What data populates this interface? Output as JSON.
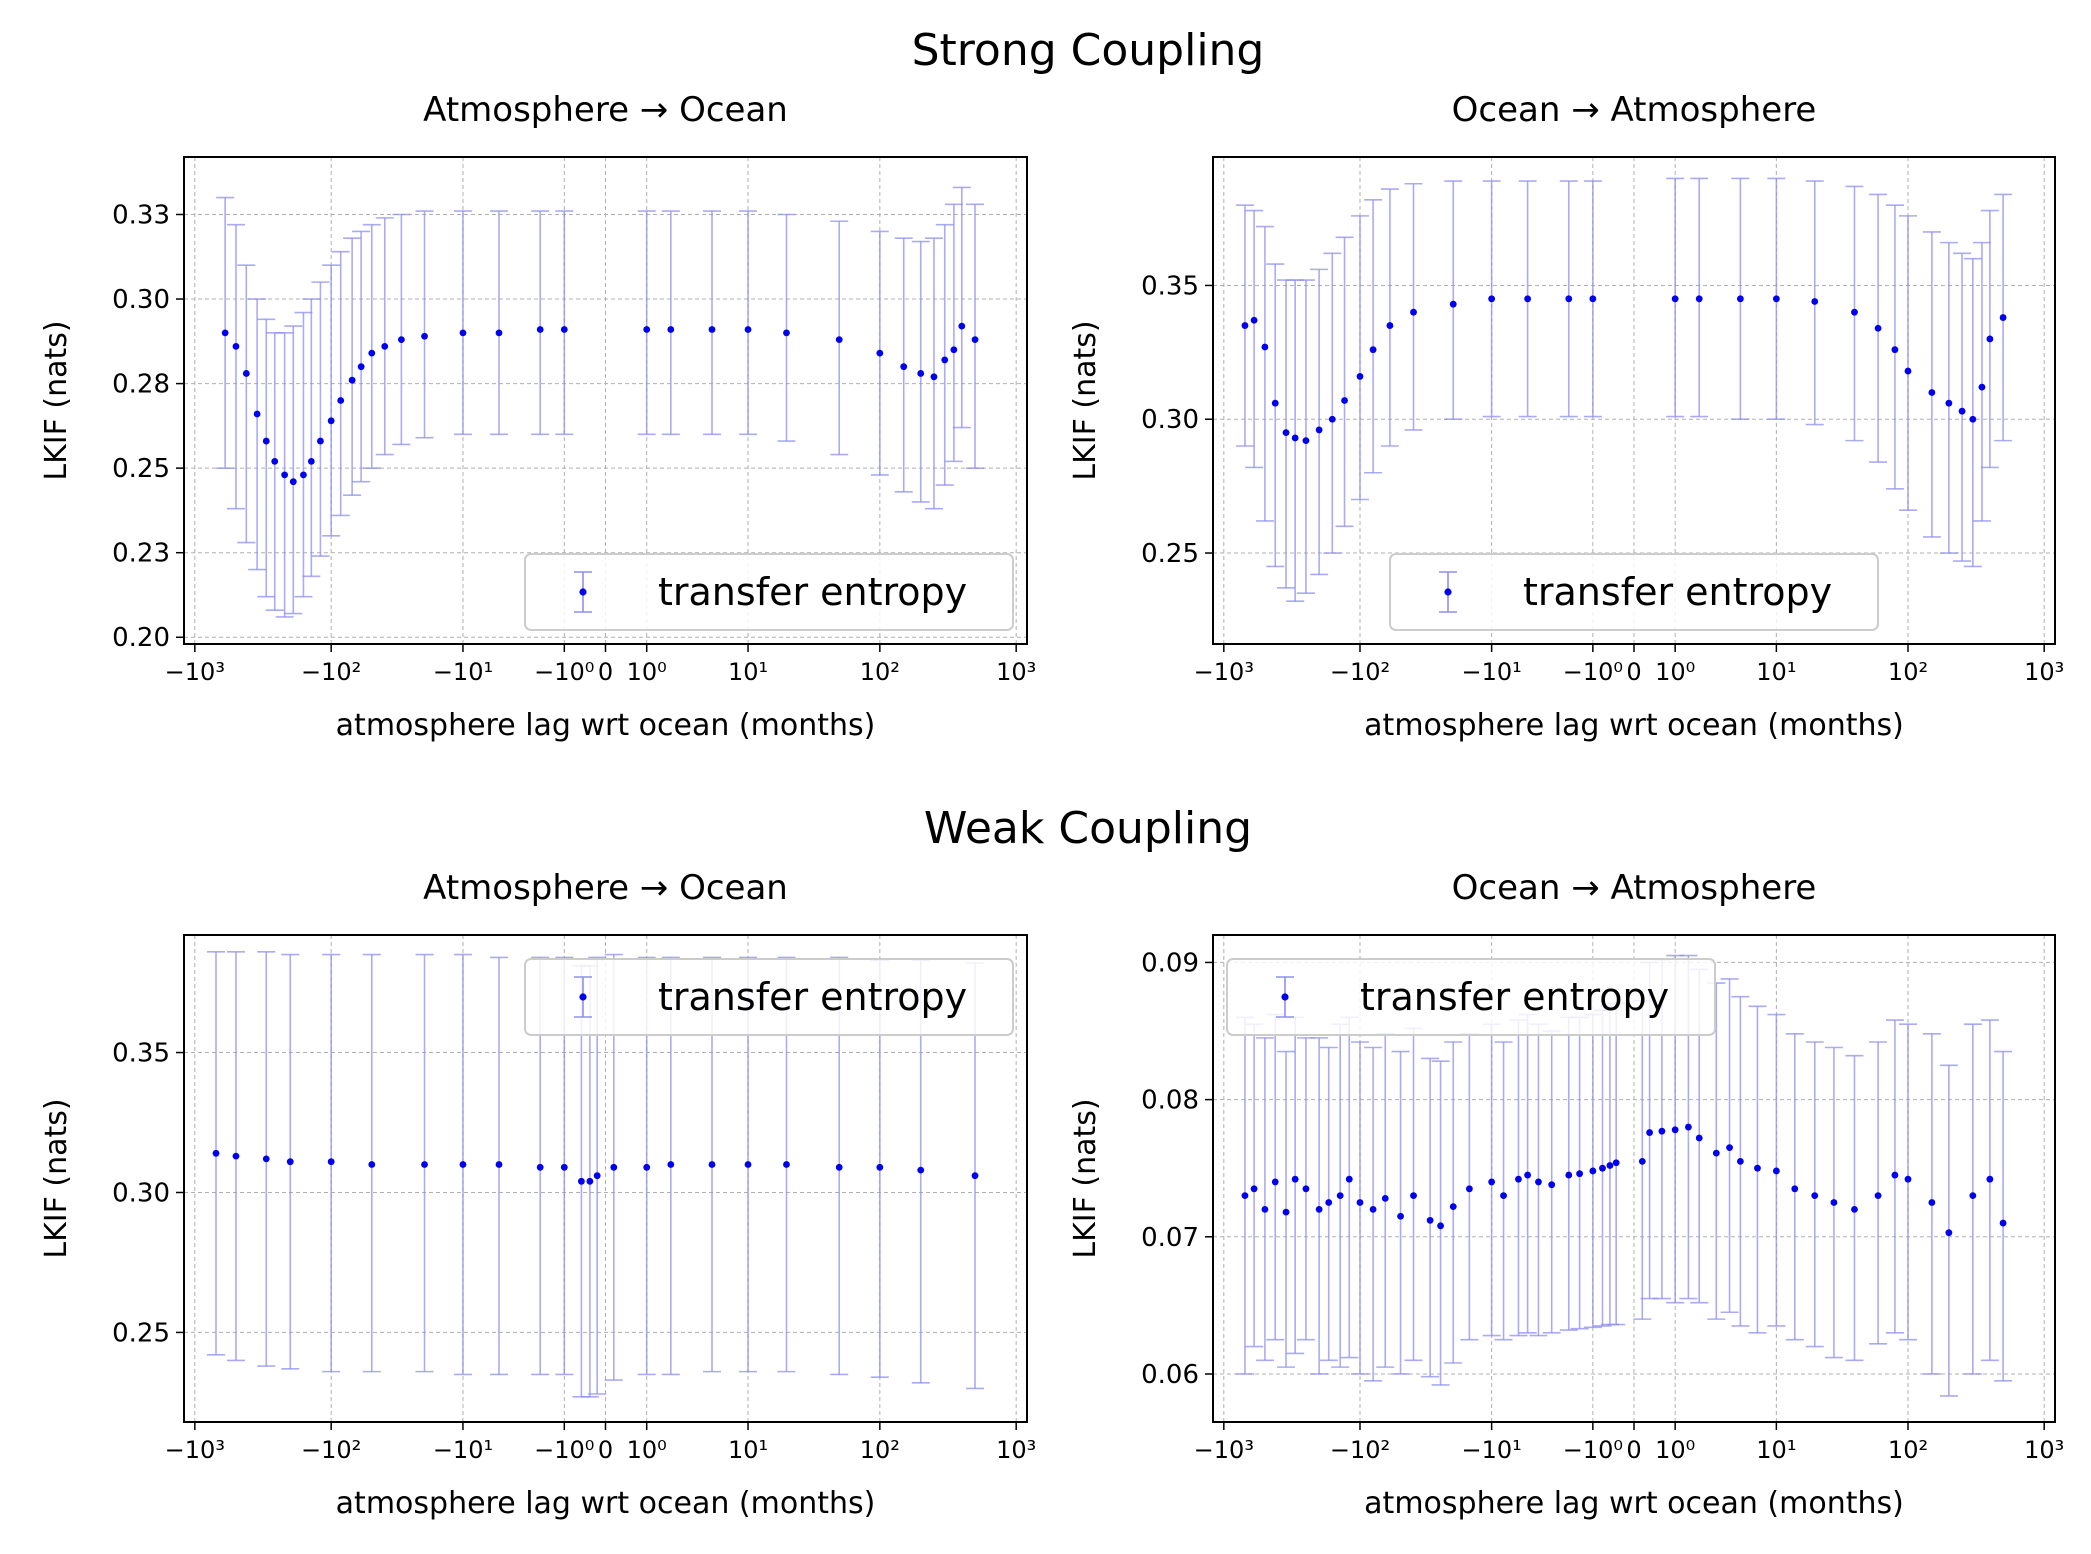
{
  "colors": {
    "marker": "#0000ee",
    "errorbar": "#8f8ff0",
    "grid": "#b0b0b0",
    "axes": "#000000",
    "legend_border": "#cccccc"
  },
  "titles": {
    "strong": "Strong Coupling",
    "weak": "Weak Coupling"
  },
  "chart_data": [
    {
      "type": "scatter",
      "title": "Atmosphere → Ocean",
      "xlabel": "atmosphere lag wrt ocean (months)",
      "ylabel": "LKIF (nats)",
      "xscale": "symlog",
      "xlim": [
        -1200,
        1200
      ],
      "ylim": [
        0.198,
        0.342
      ],
      "xticks": [
        "−10³",
        "−10²",
        "−10¹",
        "−10⁰",
        "0",
        "10⁰",
        "10¹",
        "10²",
        "10³"
      ],
      "yticks": [
        0.2,
        0.225,
        0.25,
        0.275,
        0.3,
        0.325
      ],
      "ytick_labels": [
        "0.20",
        "0.23",
        "0.25",
        "0.28",
        "0.30",
        "0.33"
      ],
      "legend": {
        "label": "transfer entropy",
        "location": "lower right"
      },
      "grid": true,
      "series": [
        {
          "name": "transfer entropy",
          "x": [
            -600,
            -500,
            -420,
            -350,
            -300,
            -260,
            -220,
            -190,
            -160,
            -140,
            -120,
            -100,
            -85,
            -70,
            -60,
            -50,
            -40,
            -30,
            -20,
            -10,
            -5,
            -2,
            -1,
            1,
            2,
            5,
            10,
            20,
            50,
            100,
            150,
            200,
            250,
            300,
            350,
            400,
            500
          ],
          "y": [
            0.29,
            0.286,
            0.278,
            0.266,
            0.258,
            0.252,
            0.248,
            0.246,
            0.248,
            0.252,
            0.258,
            0.264,
            0.27,
            0.276,
            0.28,
            0.284,
            0.286,
            0.288,
            0.289,
            0.29,
            0.29,
            0.291,
            0.291,
            0.291,
            0.291,
            0.291,
            0.291,
            0.29,
            0.288,
            0.284,
            0.28,
            0.278,
            0.277,
            0.282,
            0.285,
            0.292,
            0.288
          ],
          "lower": [
            0.25,
            0.238,
            0.228,
            0.22,
            0.212,
            0.208,
            0.206,
            0.207,
            0.212,
            0.218,
            0.224,
            0.23,
            0.236,
            0.242,
            0.246,
            0.25,
            0.254,
            0.257,
            0.259,
            0.26,
            0.26,
            0.26,
            0.26,
            0.26,
            0.26,
            0.26,
            0.26,
            0.258,
            0.254,
            0.248,
            0.243,
            0.24,
            0.238,
            0.245,
            0.252,
            0.262,
            0.25
          ],
          "upper": [
            0.33,
            0.322,
            0.31,
            0.3,
            0.294,
            0.29,
            0.29,
            0.292,
            0.296,
            0.3,
            0.305,
            0.31,
            0.314,
            0.318,
            0.32,
            0.322,
            0.324,
            0.325,
            0.326,
            0.326,
            0.326,
            0.326,
            0.326,
            0.326,
            0.326,
            0.326,
            0.326,
            0.325,
            0.323,
            0.32,
            0.318,
            0.317,
            0.318,
            0.322,
            0.328,
            0.333,
            0.328
          ]
        }
      ]
    },
    {
      "type": "scatter",
      "title": "Ocean → Atmosphere",
      "xlabel": "atmosphere lag wrt ocean (months)",
      "ylabel": "LKIF (nats)",
      "xscale": "symlog",
      "xlim": [
        -1200,
        1200
      ],
      "ylim": [
        0.216,
        0.398
      ],
      "xticks": [
        "−10³",
        "−10²",
        "−10¹",
        "−10⁰",
        "0",
        "10⁰",
        "10¹",
        "10²",
        "10³"
      ],
      "yticks": [
        0.25,
        0.3,
        0.35
      ],
      "ytick_labels": [
        "0.25",
        "0.30",
        "0.35"
      ],
      "legend": {
        "label": "transfer entropy",
        "location": "lower center"
      },
      "grid": true,
      "series": [
        {
          "name": "transfer entropy",
          "x": [
            -700,
            -600,
            -500,
            -420,
            -350,
            -300,
            -250,
            -200,
            -160,
            -130,
            -100,
            -80,
            -60,
            -40,
            -20,
            -10,
            -5,
            -2,
            -1,
            1,
            2,
            5,
            10,
            20,
            40,
            60,
            80,
            100,
            150,
            200,
            250,
            300,
            350,
            400,
            500
          ],
          "y": [
            0.335,
            0.337,
            0.327,
            0.306,
            0.295,
            0.293,
            0.292,
            0.296,
            0.3,
            0.307,
            0.316,
            0.326,
            0.335,
            0.34,
            0.343,
            0.345,
            0.345,
            0.345,
            0.345,
            0.345,
            0.345,
            0.345,
            0.345,
            0.344,
            0.34,
            0.334,
            0.326,
            0.318,
            0.31,
            0.306,
            0.303,
            0.3,
            0.312,
            0.33,
            0.338
          ],
          "lower": [
            0.29,
            0.282,
            0.262,
            0.245,
            0.237,
            0.232,
            0.235,
            0.242,
            0.25,
            0.26,
            0.27,
            0.28,
            0.29,
            0.296,
            0.3,
            0.301,
            0.301,
            0.301,
            0.301,
            0.301,
            0.301,
            0.3,
            0.3,
            0.298,
            0.292,
            0.284,
            0.274,
            0.266,
            0.256,
            0.25,
            0.247,
            0.245,
            0.262,
            0.282,
            0.292
          ],
          "upper": [
            0.38,
            0.378,
            0.372,
            0.358,
            0.352,
            0.352,
            0.352,
            0.356,
            0.362,
            0.368,
            0.376,
            0.382,
            0.386,
            0.388,
            0.389,
            0.389,
            0.389,
            0.389,
            0.389,
            0.39,
            0.39,
            0.39,
            0.39,
            0.389,
            0.387,
            0.384,
            0.38,
            0.376,
            0.37,
            0.366,
            0.362,
            0.36,
            0.366,
            0.378,
            0.384
          ]
        }
      ]
    },
    {
      "type": "scatter",
      "title": "Atmosphere → Ocean",
      "xlabel": "atmosphere lag wrt ocean (months)",
      "ylabel": "LKIF (nats)",
      "xscale": "symlog",
      "xlim": [
        -1200,
        1200
      ],
      "ylim": [
        0.218,
        0.392
      ],
      "xticks": [
        "−10³",
        "−10²",
        "−10¹",
        "−10⁰",
        "0",
        "10⁰",
        "10¹",
        "10²",
        "10³"
      ],
      "yticks": [
        0.25,
        0.3,
        0.35
      ],
      "ytick_labels": [
        "0.25",
        "0.30",
        "0.35"
      ],
      "legend": {
        "label": "transfer entropy",
        "location": "upper right"
      },
      "grid": true,
      "series": [
        {
          "name": "transfer entropy",
          "x": [
            -700,
            -500,
            -300,
            -200,
            -100,
            -50,
            -20,
            -10,
            -5,
            -2,
            -1,
            -0.5,
            -0.3,
            -0.15,
            0.15,
            1,
            2,
            5,
            10,
            20,
            50,
            100,
            200,
            500
          ],
          "y": [
            0.314,
            0.313,
            0.312,
            0.311,
            0.311,
            0.31,
            0.31,
            0.31,
            0.31,
            0.309,
            0.309,
            0.304,
            0.304,
            0.306,
            0.309,
            0.309,
            0.31,
            0.31,
            0.31,
            0.31,
            0.309,
            0.309,
            0.308,
            0.306
          ],
          "lower": [
            0.242,
            0.24,
            0.238,
            0.237,
            0.236,
            0.236,
            0.236,
            0.235,
            0.235,
            0.235,
            0.235,
            0.227,
            0.227,
            0.228,
            0.233,
            0.235,
            0.235,
            0.236,
            0.236,
            0.236,
            0.235,
            0.234,
            0.232,
            0.23
          ],
          "upper": [
            0.386,
            0.386,
            0.386,
            0.385,
            0.385,
            0.385,
            0.385,
            0.385,
            0.384,
            0.384,
            0.384,
            0.381,
            0.381,
            0.384,
            0.385,
            0.384,
            0.384,
            0.384,
            0.384,
            0.384,
            0.384,
            0.383,
            0.383,
            0.382
          ]
        }
      ]
    },
    {
      "type": "scatter",
      "title": "Ocean → Atmosphere",
      "xlabel": "atmosphere lag wrt ocean (months)",
      "ylabel": "LKIF (nats)",
      "xscale": "symlog",
      "xlim": [
        -1200,
        1200
      ],
      "ylim": [
        0.0565,
        0.092
      ],
      "xticks": [
        "−10³",
        "−10²",
        "−10¹",
        "−10⁰",
        "0",
        "10⁰",
        "10¹",
        "10²",
        "10³"
      ],
      "yticks": [
        0.06,
        0.07,
        0.08,
        0.09
      ],
      "ytick_labels": [
        "0.06",
        "0.07",
        "0.08",
        "0.09"
      ],
      "legend": {
        "label": "transfer entropy",
        "location": "upper left"
      },
      "grid": true,
      "series": [
        {
          "name": "transfer entropy",
          "x": [
            -700,
            -600,
            -500,
            -420,
            -350,
            -300,
            -250,
            -200,
            -170,
            -140,
            -120,
            -100,
            -80,
            -65,
            -50,
            -40,
            -30,
            -25,
            -20,
            -15,
            -10,
            -8,
            -6,
            -5,
            -4,
            -3,
            -2,
            -1.5,
            -1,
            -0.7,
            -0.5,
            -0.35,
            0.15,
            0.3,
            0.6,
            1,
            1.5,
            2,
            3,
            4,
            5,
            7,
            10,
            14,
            20,
            28,
            40,
            60,
            80,
            100,
            150,
            200,
            300,
            400,
            500
          ],
          "y": [
            0.073,
            0.0735,
            0.072,
            0.074,
            0.0718,
            0.0742,
            0.0735,
            0.072,
            0.0725,
            0.073,
            0.0742,
            0.0725,
            0.072,
            0.0728,
            0.0715,
            0.073,
            0.0712,
            0.0708,
            0.0722,
            0.0735,
            0.074,
            0.073,
            0.0742,
            0.0745,
            0.074,
            0.0738,
            0.0745,
            0.0746,
            0.0748,
            0.075,
            0.0752,
            0.0754,
            0.0755,
            0.0776,
            0.0777,
            0.0778,
            0.078,
            0.0772,
            0.0761,
            0.0765,
            0.0755,
            0.075,
            0.0748,
            0.0735,
            0.073,
            0.0725,
            0.072,
            0.073,
            0.0745,
            0.0742,
            0.0725,
            0.0703,
            0.073,
            0.0742,
            0.071
          ],
          "lower": [
            0.06,
            0.062,
            0.061,
            0.0625,
            0.0605,
            0.0615,
            0.0625,
            0.06,
            0.061,
            0.0605,
            0.0612,
            0.06,
            0.0595,
            0.0605,
            0.06,
            0.061,
            0.0598,
            0.0592,
            0.0608,
            0.0625,
            0.0628,
            0.0625,
            0.0628,
            0.063,
            0.0628,
            0.063,
            0.0632,
            0.0633,
            0.0634,
            0.0635,
            0.0636,
            0.0636,
            0.064,
            0.0655,
            0.0655,
            0.0652,
            0.0655,
            0.0652,
            0.064,
            0.0645,
            0.0635,
            0.063,
            0.0635,
            0.0625,
            0.062,
            0.0612,
            0.061,
            0.0622,
            0.063,
            0.0625,
            0.06,
            0.0584,
            0.06,
            0.061,
            0.0595
          ],
          "upper": [
            0.086,
            0.0855,
            0.0845,
            0.0862,
            0.0835,
            0.086,
            0.0845,
            0.0845,
            0.0838,
            0.0855,
            0.086,
            0.0842,
            0.0838,
            0.0848,
            0.0835,
            0.0852,
            0.083,
            0.0828,
            0.0842,
            0.0848,
            0.0855,
            0.0842,
            0.0858,
            0.0862,
            0.0855,
            0.085,
            0.086,
            0.086,
            0.0862,
            0.0865,
            0.0868,
            0.087,
            0.0872,
            0.09,
            0.0902,
            0.0905,
            0.0905,
            0.0895,
            0.0885,
            0.0888,
            0.0875,
            0.0868,
            0.0862,
            0.0848,
            0.0842,
            0.0838,
            0.0832,
            0.0842,
            0.0858,
            0.0855,
            0.0848,
            0.0825,
            0.0855,
            0.0858,
            0.0835
          ]
        }
      ]
    }
  ]
}
